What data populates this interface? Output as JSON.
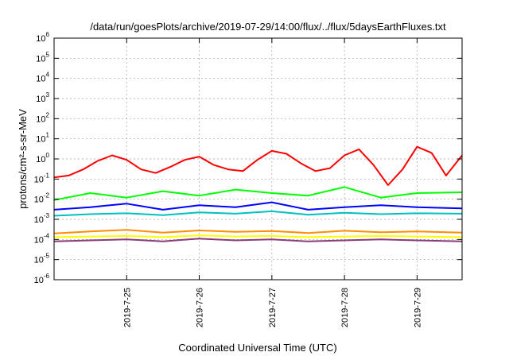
{
  "chart_data": {
    "type": "line",
    "title": "/data/run/goesPlots/archive/2019-07-29/14:00/flux/../flux/5daysEarthFluxes.txt",
    "xlabel": "Coordinated Universal Time (UTC)",
    "ylabel": "protons/cm²-s-sr-MeV",
    "y_scale": "log",
    "ylim": [
      1e-06,
      1000000.0
    ],
    "x_unit": "days since 2019-07-24 00:00 UTC",
    "xlim": [
      0.0,
      5.62
    ],
    "x_ticks": [
      {
        "x": 1,
        "label": "2019-7-25"
      },
      {
        "x": 2,
        "label": "2019-7-26"
      },
      {
        "x": 3,
        "label": "2019-7-27"
      },
      {
        "x": 4,
        "label": "2019-7-28"
      },
      {
        "x": 5,
        "label": "2019-7-29"
      }
    ],
    "y_ticks": [
      {
        "v": 1e-06,
        "base": "10",
        "exp": "-6"
      },
      {
        "v": 1e-05,
        "base": "10",
        "exp": "-5"
      },
      {
        "v": 0.0001,
        "base": "10",
        "exp": "-4"
      },
      {
        "v": 0.001,
        "base": "10",
        "exp": "-3"
      },
      {
        "v": 0.01,
        "base": "10",
        "exp": "-2"
      },
      {
        "v": 0.1,
        "base": "10",
        "exp": "-1"
      },
      {
        "v": 1,
        "base": "10",
        "exp": "0"
      },
      {
        "v": 10,
        "base": "10",
        "exp": "1"
      },
      {
        "v": 100,
        "base": "10",
        "exp": "2"
      },
      {
        "v": 1000,
        "base": "10",
        "exp": "3"
      },
      {
        "v": 10000,
        "base": "10",
        "exp": "4"
      },
      {
        "v": 100000,
        "base": "10",
        "exp": "5"
      },
      {
        "v": 1000000,
        "base": "10",
        "exp": "6"
      }
    ],
    "grid": true,
    "legend": "none",
    "series": [
      {
        "color": "#ff0000",
        "x": [
          0.0,
          0.2,
          0.4,
          0.6,
          0.8,
          1.0,
          1.2,
          1.4,
          1.6,
          1.8,
          2.0,
          2.2,
          2.4,
          2.6,
          2.8,
          3.0,
          3.2,
          3.4,
          3.6,
          3.8,
          4.0,
          4.2,
          4.4,
          4.6,
          4.8,
          5.0,
          5.2,
          5.4,
          5.62
        ],
        "values": [
          0.12,
          0.15,
          0.3,
          0.8,
          1.5,
          0.9,
          0.3,
          0.2,
          0.4,
          0.9,
          1.3,
          0.5,
          0.3,
          0.25,
          0.9,
          2.5,
          1.8,
          0.6,
          0.25,
          0.35,
          1.5,
          3.0,
          0.5,
          0.05,
          0.3,
          4.0,
          2.0,
          0.15,
          1.5
        ]
      },
      {
        "color": "#00ff00",
        "x": [
          0.0,
          0.5,
          1.0,
          1.5,
          2.0,
          2.5,
          3.0,
          3.5,
          4.0,
          4.5,
          5.0,
          5.62
        ],
        "values": [
          0.009,
          0.02,
          0.012,
          0.025,
          0.015,
          0.03,
          0.02,
          0.015,
          0.04,
          0.012,
          0.02,
          0.022
        ]
      },
      {
        "color": "#0000ff",
        "x": [
          0.0,
          0.5,
          1.0,
          1.5,
          2.0,
          2.5,
          3.0,
          3.5,
          4.0,
          4.5,
          5.0,
          5.62
        ],
        "values": [
          0.003,
          0.004,
          0.006,
          0.003,
          0.005,
          0.004,
          0.007,
          0.003,
          0.004,
          0.005,
          0.004,
          0.0035
        ]
      },
      {
        "color": "#00c0c0",
        "x": [
          0.0,
          0.5,
          1.0,
          1.5,
          2.0,
          2.5,
          3.0,
          3.5,
          4.0,
          4.5,
          5.0,
          5.62
        ],
        "values": [
          0.0015,
          0.0018,
          0.002,
          0.0016,
          0.0022,
          0.0019,
          0.0025,
          0.0017,
          0.0021,
          0.0018,
          0.002,
          0.0019
        ]
      },
      {
        "color": "#ffff00",
        "x": [
          0.0,
          0.5,
          1.0,
          1.5,
          2.0,
          2.5,
          3.0,
          3.5,
          4.0,
          4.5,
          5.0,
          5.62
        ],
        "values": [
          0.00013,
          0.00014,
          0.00015,
          0.00013,
          0.00016,
          0.00014,
          0.00015,
          0.00013,
          0.00014,
          0.00015,
          0.00014,
          0.00013
        ]
      },
      {
        "color": "#ff8c00",
        "x": [
          0.0,
          0.5,
          1.0,
          1.5,
          2.0,
          2.5,
          3.0,
          3.5,
          4.0,
          4.5,
          5.0,
          5.62
        ],
        "values": [
          0.0002,
          0.00025,
          0.0003,
          0.00022,
          0.00028,
          0.00024,
          0.00026,
          0.00021,
          0.00027,
          0.00023,
          0.00025,
          0.00022
        ]
      },
      {
        "color": "#8b3a7a",
        "x": [
          0.0,
          0.5,
          1.0,
          1.5,
          2.0,
          2.5,
          3.0,
          3.5,
          4.0,
          4.5,
          5.0,
          5.62
        ],
        "values": [
          8e-05,
          9e-05,
          0.0001,
          8e-05,
          0.00011,
          9e-05,
          0.0001,
          8e-05,
          9e-05,
          0.0001,
          9e-05,
          8e-05
        ]
      }
    ]
  }
}
